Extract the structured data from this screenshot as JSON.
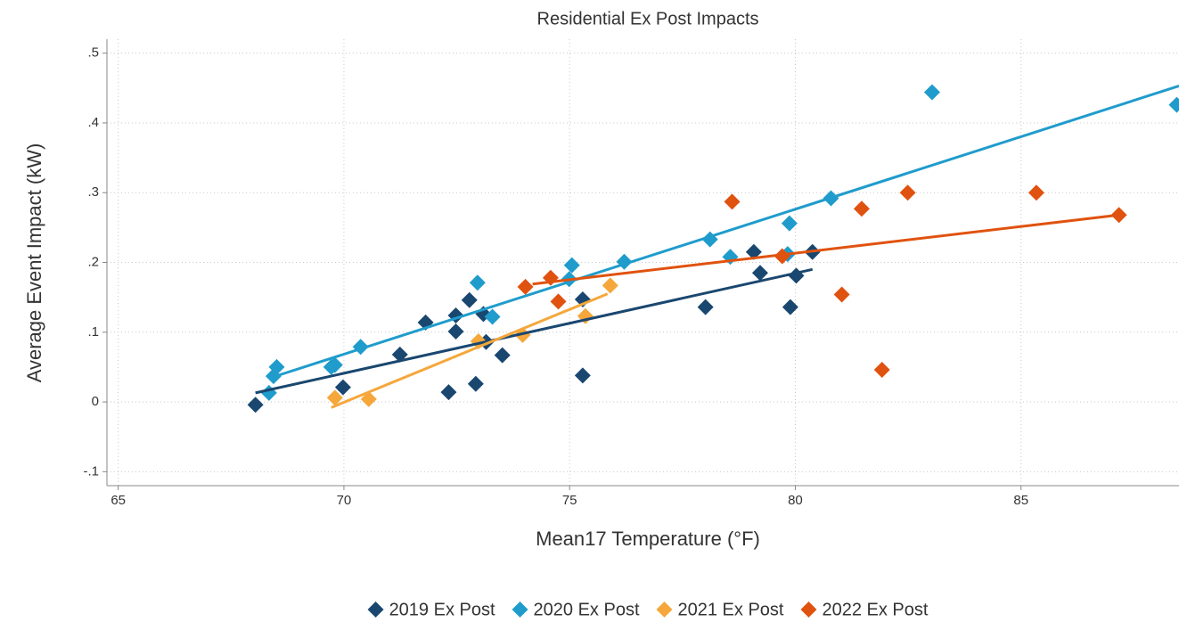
{
  "chart_data": {
    "type": "scatter",
    "title": "Residential Ex Post Impacts",
    "x_label": "Mean17 Temperature (°F)",
    "y_label": "Average Event Impact (kW)",
    "xlim": [
      64.75,
      88.5
    ],
    "ylim": [
      -0.12,
      0.52
    ],
    "xticks": [
      65,
      70,
      75,
      80,
      85
    ],
    "yticks": [
      {
        "value": -0.1,
        "label": "-.1"
      },
      0,
      {
        "value": 0.1,
        "label": ".1"
      },
      {
        "value": 0.2,
        "label": ".2"
      },
      {
        "value": 0.3,
        "label": ".3"
      },
      {
        "value": 0.4,
        "label": ".4"
      },
      {
        "value": 0.5,
        "label": ".5"
      }
    ],
    "grid": true,
    "legend": "bottom",
    "series": [
      {
        "name": "2019 Ex Post",
        "color": "#1a476f",
        "x": [
          68.04,
          69.98,
          71.24,
          71.81,
          72.48,
          72.48,
          72.78,
          73.09,
          73.15,
          72.32,
          72.92,
          73.51,
          75.29,
          75.29,
          78.01,
          79.08,
          79.22,
          79.89,
          80.02,
          80.38
        ],
        "values": [
          -0.004,
          0.021,
          0.068,
          0.114,
          0.124,
          0.101,
          0.146,
          0.126,
          0.086,
          0.014,
          0.026,
          0.067,
          0.147,
          0.038,
          0.136,
          0.215,
          0.185,
          0.136,
          0.181,
          0.215
        ],
        "fit_x": [
          68.04,
          80.38
        ],
        "fit_y": [
          0.013,
          0.19
        ]
      },
      {
        "name": "2020 Ex Post",
        "color": "#1f9ccc",
        "x": [
          68.34,
          68.44,
          68.51,
          69.72,
          69.8,
          70.37,
          72.96,
          73.29,
          75.05,
          74.99,
          76.21,
          78.11,
          78.56,
          79.83,
          79.87,
          80.79,
          83.03,
          88.45
        ],
        "values": [
          0.013,
          0.037,
          0.05,
          0.05,
          0.053,
          0.079,
          0.171,
          0.122,
          0.196,
          0.176,
          0.201,
          0.233,
          0.208,
          0.212,
          0.256,
          0.292,
          0.444,
          0.426
        ],
        "fit_x": [
          68.44,
          88.5
        ],
        "fit_y": [
          0.036,
          0.453
        ]
      },
      {
        "name": "2021 Ex Post",
        "color": "#f5a73b",
        "x": [
          69.8,
          70.55,
          72.98,
          73.96,
          75.35,
          75.9
        ],
        "values": [
          0.006,
          0.004,
          0.087,
          0.096,
          0.123,
          0.167
        ],
        "fit_x": [
          69.72,
          75.84
        ],
        "fit_y": [
          -0.008,
          0.155
        ]
      },
      {
        "name": "2022 Ex Post",
        "color": "#e0520f",
        "x": [
          74.02,
          74.58,
          74.75,
          78.6,
          79.71,
          81.03,
          81.47,
          81.92,
          82.49,
          85.34,
          87.17
        ],
        "values": [
          0.165,
          0.178,
          0.144,
          0.287,
          0.209,
          0.154,
          0.277,
          0.046,
          0.3,
          0.3,
          0.268
        ],
        "fit_x": [
          74.18,
          87.17
        ],
        "fit_y": [
          0.169,
          0.268
        ]
      }
    ]
  }
}
